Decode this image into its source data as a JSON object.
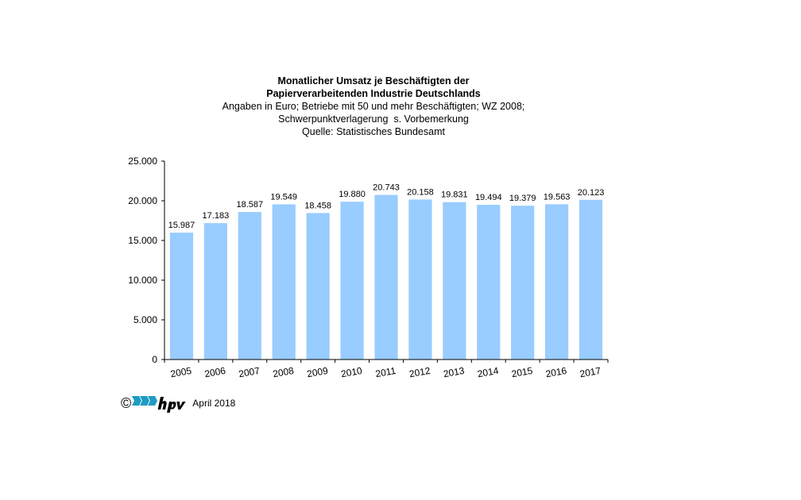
{
  "chart_data": {
    "type": "bar",
    "title_line1": "Monatlicher Umsatz je Beschäftigten der",
    "title_line2": "Papierverarbeitenden Industrie Deutschlands",
    "subtitle_line1": "Angaben in Euro; Betriebe mit 50 und mehr Beschäftigten; WZ 2008;",
    "subtitle_line2": "Schwerpunktverlagerung  s. Vorbemerkung",
    "subtitle_line3": "Quelle: Statistisches Bundesamt",
    "categories": [
      "2005",
      "2006",
      "2007",
      "2008",
      "2009",
      "2010",
      "2011",
      "2012",
      "2013",
      "2014",
      "2015",
      "2016",
      "2017"
    ],
    "values": [
      15987,
      17183,
      18587,
      19549,
      18458,
      19880,
      20743,
      20158,
      19831,
      19494,
      19379,
      19563,
      20123
    ],
    "value_labels": [
      "15.987",
      "17.183",
      "18.587",
      "19.549",
      "18.458",
      "19.880",
      "20.743",
      "20.158",
      "19.831",
      "19.494",
      "19.379",
      "19.563",
      "20.123"
    ],
    "yticks": [
      0,
      5000,
      10000,
      15000,
      20000,
      25000
    ],
    "ytick_labels": [
      "0",
      "5.000",
      "10.000",
      "15.000",
      "20.000",
      "25.000"
    ],
    "ylim": [
      0,
      25000
    ],
    "xlabel": "",
    "ylabel": "",
    "grid": false,
    "bar_color": "#99ccff"
  },
  "footer": {
    "copyright_symbol": "©",
    "logo_name": "hpv-logo",
    "date_text": "April 2018"
  },
  "colors": {
    "bar": "#99ccff",
    "axis": "#000000",
    "logo_blue": "#1e9cc4",
    "background": "#ffffff"
  }
}
